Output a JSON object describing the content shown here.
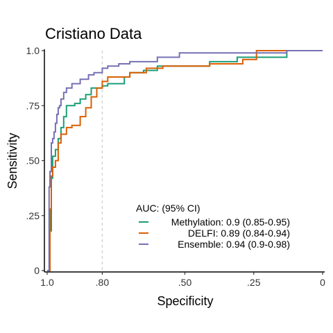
{
  "chart_data": {
    "type": "line",
    "title": "Cristiano Data",
    "xlabel": "Specificity",
    "ylabel": "Sensitivity",
    "xlim": [
      1.0,
      0
    ],
    "ylim": [
      0,
      1.0
    ],
    "x_reversed": true,
    "x_ticks": [
      {
        "value": 1.0,
        "label": "1.0"
      },
      {
        "value": 0.8,
        "label": ".80"
      },
      {
        "value": 0.5,
        "label": ".50"
      },
      {
        "value": 0.25,
        "label": ".25"
      },
      {
        "value": 0,
        "label": "0"
      }
    ],
    "y_ticks": [
      {
        "value": 0,
        "label": "0"
      },
      {
        "value": 0.25,
        "label": ".25"
      },
      {
        "value": 0.5,
        "label": ".50"
      },
      {
        "value": 0.75,
        "label": ".75"
      },
      {
        "value": 1.0,
        "label": "1.0"
      }
    ],
    "reference_line": {
      "x": 0.8,
      "style": "dashed",
      "color": "#cccccc"
    },
    "grid": false,
    "legend": {
      "title": "AUC: (95% CI)",
      "placement": "bottom-right-inside"
    },
    "series": [
      {
        "name": "Methylation: 0.9 (0.85-0.95)",
        "color": "#1b9e77",
        "x": [
          1.0,
          0.99,
          0.99,
          0.985,
          0.985,
          0.98,
          0.98,
          0.97,
          0.97,
          0.96,
          0.96,
          0.95,
          0.95,
          0.94,
          0.94,
          0.93,
          0.93,
          0.9,
          0.9,
          0.88,
          0.88,
          0.86,
          0.86,
          0.84,
          0.84,
          0.8,
          0.8,
          0.78,
          0.78,
          0.72,
          0.72,
          0.7,
          0.7,
          0.65,
          0.65,
          0.6,
          0.6,
          0.41,
          0.41,
          0.31,
          0.31,
          0.13,
          0.13,
          0
        ],
        "y": [
          0,
          0,
          0.18,
          0.18,
          0.42,
          0.42,
          0.52,
          0.52,
          0.55,
          0.55,
          0.6,
          0.6,
          0.65,
          0.65,
          0.7,
          0.7,
          0.75,
          0.75,
          0.76,
          0.76,
          0.78,
          0.78,
          0.8,
          0.8,
          0.83,
          0.83,
          0.84,
          0.84,
          0.85,
          0.85,
          0.88,
          0.88,
          0.9,
          0.9,
          0.91,
          0.91,
          0.93,
          0.93,
          0.95,
          0.95,
          0.97,
          0.97,
          1.0,
          1.0
        ]
      },
      {
        "name": "DELFI: 0.89 (0.84-0.94)",
        "color": "#d95f02",
        "x": [
          1.0,
          0.99,
          0.99,
          0.985,
          0.985,
          0.98,
          0.98,
          0.97,
          0.97,
          0.96,
          0.96,
          0.95,
          0.95,
          0.93,
          0.93,
          0.91,
          0.91,
          0.88,
          0.88,
          0.86,
          0.86,
          0.84,
          0.84,
          0.82,
          0.82,
          0.8,
          0.8,
          0.78,
          0.78,
          0.7,
          0.7,
          0.64,
          0.64,
          0.58,
          0.58,
          0.41,
          0.41,
          0.29,
          0.29,
          0.24,
          0.24,
          0
        ],
        "y": [
          0,
          0,
          0.28,
          0.28,
          0.43,
          0.43,
          0.47,
          0.47,
          0.5,
          0.5,
          0.58,
          0.58,
          0.62,
          0.62,
          0.65,
          0.65,
          0.66,
          0.66,
          0.7,
          0.7,
          0.74,
          0.74,
          0.79,
          0.79,
          0.83,
          0.83,
          0.86,
          0.86,
          0.88,
          0.88,
          0.9,
          0.9,
          0.92,
          0.92,
          0.93,
          0.93,
          0.94,
          0.94,
          0.96,
          0.96,
          1.0,
          1.0
        ]
      },
      {
        "name": "Ensemble: 0.94 (0.9-0.98)",
        "color": "#7570b3",
        "x": [
          1.0,
          0.993,
          0.993,
          0.99,
          0.99,
          0.985,
          0.985,
          0.98,
          0.98,
          0.975,
          0.975,
          0.97,
          0.97,
          0.965,
          0.965,
          0.96,
          0.96,
          0.955,
          0.955,
          0.95,
          0.95,
          0.94,
          0.94,
          0.93,
          0.93,
          0.91,
          0.91,
          0.88,
          0.88,
          0.85,
          0.85,
          0.83,
          0.83,
          0.8,
          0.8,
          0.78,
          0.78,
          0.74,
          0.74,
          0.7,
          0.7,
          0.6,
          0.6,
          0.52,
          0.52,
          0.13,
          0.13,
          0
        ],
        "y": [
          0,
          0,
          0.38,
          0.38,
          0.45,
          0.45,
          0.58,
          0.58,
          0.6,
          0.6,
          0.63,
          0.63,
          0.67,
          0.67,
          0.71,
          0.71,
          0.74,
          0.74,
          0.75,
          0.75,
          0.78,
          0.78,
          0.81,
          0.81,
          0.83,
          0.83,
          0.85,
          0.85,
          0.87,
          0.87,
          0.89,
          0.89,
          0.9,
          0.9,
          0.92,
          0.92,
          0.93,
          0.93,
          0.94,
          0.94,
          0.95,
          0.95,
          0.97,
          0.97,
          0.99,
          0.99,
          1.0,
          1.0
        ]
      }
    ]
  }
}
